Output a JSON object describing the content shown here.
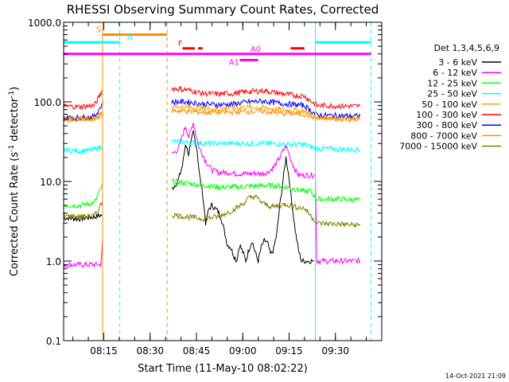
{
  "chart_data": {
    "type": "line",
    "title": "RHESSI Observing Summary Count Rates, Corrected",
    "xlabel": "Start Time (11-May-10 08:02:22)",
    "ylabel_main": "Corrected Count Rate (s",
    "ylabel_sup1": "-1",
    "ylabel_mid": " detector",
    "ylabel_sup2": "-1",
    "ylabel_end": ")",
    "x_range_min": [
      0,
      103
    ],
    "y_range": [
      0.1,
      1000
    ],
    "y_scale": "log",
    "x_ticks": [
      {
        "min": 13,
        "label": "08:15"
      },
      {
        "min": 28,
        "label": "08:30"
      },
      {
        "min": 43,
        "label": "08:45"
      },
      {
        "min": 58,
        "label": "09:00"
      },
      {
        "min": 73,
        "label": "09:15"
      },
      {
        "min": 88,
        "label": "09:30"
      }
    ],
    "y_ticks": [
      {
        "v": 1000,
        "label": "1000.0"
      },
      {
        "v": 100,
        "label": "100.0"
      },
      {
        "v": 10,
        "label": "10.0"
      },
      {
        "v": 1,
        "label": "1.0"
      },
      {
        "v": 0.1,
        "label": "0.1"
      }
    ],
    "legend_title": "Det 1,3,4,5,6,9",
    "legend_placement": "right",
    "series": [
      {
        "name": "3 - 6 keV",
        "color": "#000000",
        "segments": [
          [
            [
              0,
              3.5
            ],
            [
              5,
              3.4
            ],
            [
              10,
              3.6
            ],
            [
              12.5,
              3.8
            ]
          ],
          [
            [
              35,
              8
            ],
            [
              37,
              10
            ],
            [
              38.5,
              16
            ],
            [
              39.5,
              30
            ],
            [
              40.5,
              22
            ],
            [
              42,
              42
            ],
            [
              43.2,
              25
            ],
            [
              44,
              12
            ],
            [
              45,
              7
            ],
            [
              46,
              3
            ],
            [
              47,
              4.5
            ],
            [
              48,
              5
            ],
            [
              49,
              4.6
            ],
            [
              50,
              4.2
            ],
            [
              51,
              3.5
            ],
            [
              52,
              2.4
            ],
            [
              53,
              1.6
            ],
            [
              54,
              1.5
            ],
            [
              55,
              1.2
            ],
            [
              56,
              1.0
            ],
            [
              57,
              1.6
            ],
            [
              58,
              1.3
            ],
            [
              59,
              1.0
            ],
            [
              60,
              1.4
            ],
            [
              61,
              1.8
            ],
            [
              62,
              1.3
            ],
            [
              63,
              1.0
            ],
            [
              64,
              1.5
            ],
            [
              65,
              1.8
            ],
            [
              66,
              1.7
            ],
            [
              67,
              1.2
            ],
            [
              68,
              1.4
            ],
            [
              69,
              2.2
            ],
            [
              70,
              5
            ],
            [
              71,
              10
            ],
            [
              72,
              20
            ],
            [
              73,
              11
            ],
            [
              74,
              5
            ],
            [
              75,
              2.4
            ],
            [
              76,
              1.4
            ],
            [
              77,
              1.0
            ],
            [
              78,
              1.0
            ],
            [
              79,
              1.0
            ],
            [
              80,
              1.0
            ],
            [
              81,
              1.0
            ]
          ]
        ]
      },
      {
        "name": "6 - 12 keV",
        "color": "#ff00ff",
        "segments": [
          [
            [
              0,
              0.9
            ],
            [
              12,
              0.9
            ],
            [
              12.6,
              1.8
            ]
          ],
          [
            [
              35,
              22
            ],
            [
              37,
              25
            ],
            [
              38.5,
              38
            ],
            [
              39.5,
              50
            ],
            [
              40.5,
              36
            ],
            [
              42,
              55
            ],
            [
              43.2,
              34
            ],
            [
              44,
              26
            ],
            [
              45,
              22
            ],
            [
              46,
              18
            ],
            [
              48,
              14
            ],
            [
              50,
              13
            ],
            [
              52,
              13
            ],
            [
              54,
              13
            ],
            [
              56,
              12.5
            ],
            [
              58,
              12.5
            ],
            [
              60,
              12.5
            ],
            [
              62,
              12.7
            ],
            [
              64,
              12.5
            ],
            [
              66,
              13
            ],
            [
              68,
              15
            ],
            [
              70,
              20
            ],
            [
              71,
              24
            ],
            [
              72,
              28
            ],
            [
              73,
              22
            ],
            [
              74,
              17
            ],
            [
              75,
              14
            ],
            [
              76,
              12
            ],
            [
              78,
              12
            ],
            [
              80,
              12
            ],
            [
              81.5,
              12
            ],
            [
              82,
              1
            ],
            [
              96,
              1
            ]
          ]
        ]
      },
      {
        "name": "12 - 25 keV",
        "color": "#00ff00",
        "segments": [
          [
            [
              0,
              5
            ],
            [
              5,
              5
            ],
            [
              10,
              5.4
            ],
            [
              12.6,
              9
            ]
          ],
          [
            [
              35,
              10
            ],
            [
              40,
              9.5
            ],
            [
              45,
              9
            ],
            [
              50,
              8.5
            ],
            [
              55,
              8.5
            ],
            [
              60,
              8.7
            ],
            [
              65,
              8.9
            ],
            [
              70,
              8.8
            ],
            [
              72,
              8.5
            ],
            [
              75,
              8
            ],
            [
              78,
              7.5
            ],
            [
              80,
              7.5
            ],
            [
              82,
              6
            ],
            [
              90,
              6
            ],
            [
              96,
              5.8
            ]
          ]
        ]
      },
      {
        "name": "25 - 50 keV",
        "color": "#00ffff",
        "segments": [
          [
            [
              0,
              25
            ],
            [
              5,
              24
            ],
            [
              10,
              25
            ],
            [
              12.6,
              28
            ]
          ],
          [
            [
              35,
              32
            ],
            [
              45,
              30
            ],
            [
              55,
              30
            ],
            [
              65,
              30
            ],
            [
              72,
              29.5
            ],
            [
              78,
              29
            ],
            [
              82,
              26
            ],
            [
              96,
              25
            ]
          ]
        ]
      },
      {
        "name": "50 - 100 keV",
        "color": "#ffa500",
        "segments": [
          [
            [
              0,
              62
            ],
            [
              5,
              61
            ],
            [
              10,
              62
            ],
            [
              12.6,
              75
            ]
          ],
          [
            [
              35,
              88
            ],
            [
              40,
              86
            ],
            [
              45,
              82
            ],
            [
              50,
              82
            ],
            [
              55,
              84
            ],
            [
              60,
              86
            ],
            [
              65,
              84
            ],
            [
              70,
              80
            ],
            [
              75,
              78
            ],
            [
              78,
              77
            ],
            [
              82,
              64
            ],
            [
              96,
              62
            ]
          ]
        ]
      },
      {
        "name": "100 - 300 keV",
        "color": "#ff0000",
        "segments": [
          [
            [
              0,
              88
            ],
            [
              5,
              87
            ],
            [
              10,
              90
            ],
            [
              12.6,
              140
            ]
          ],
          [
            [
              35,
              148
            ],
            [
              40,
              142
            ],
            [
              45,
              128
            ],
            [
              50,
              125
            ],
            [
              55,
              128
            ],
            [
              60,
              135
            ],
            [
              65,
              138
            ],
            [
              70,
              128
            ],
            [
              75,
              120
            ],
            [
              78,
              118
            ],
            [
              82,
              90
            ],
            [
              96,
              88
            ]
          ]
        ]
      },
      {
        "name": "300 - 800 keV",
        "color": "#0000ff",
        "segments": [
          [
            [
              0,
              64
            ],
            [
              5,
              63
            ],
            [
              10,
              65
            ],
            [
              12.6,
              95
            ]
          ],
          [
            [
              35,
              100
            ],
            [
              40,
              100
            ],
            [
              45,
              94
            ],
            [
              50,
              92
            ],
            [
              55,
              94
            ],
            [
              60,
              100
            ],
            [
              65,
              102
            ],
            [
              70,
              96
            ],
            [
              75,
              92
            ],
            [
              78,
              90
            ],
            [
              82,
              68
            ],
            [
              96,
              66
            ]
          ]
        ]
      },
      {
        "name": "800 - 7000 keV",
        "color": "#ff8c00",
        "segments": [
          [
            [
              0,
              60
            ],
            [
              5,
              60
            ],
            [
              10,
              61
            ],
            [
              12.6,
              70
            ]
          ],
          [
            [
              35,
              78
            ],
            [
              40,
              76
            ],
            [
              45,
              74
            ],
            [
              50,
              74
            ],
            [
              55,
              74
            ],
            [
              60,
              76
            ],
            [
              65,
              76
            ],
            [
              70,
              72
            ],
            [
              75,
              71
            ],
            [
              78,
              70
            ],
            [
              82,
              62
            ],
            [
              96,
              60
            ]
          ]
        ]
      },
      {
        "name": "7000 - 15000 keV",
        "color": "#808000",
        "segments": [
          [
            [
              0,
              3.7
            ],
            [
              5,
              3.6
            ],
            [
              10,
              3.7
            ],
            [
              12.6,
              5.5
            ]
          ],
          [
            [
              35,
              3.8
            ],
            [
              40,
              3.6
            ],
            [
              45,
              3.4
            ],
            [
              50,
              3.6
            ],
            [
              55,
              4.4
            ],
            [
              58,
              5.2
            ],
            [
              60,
              6.2
            ],
            [
              62,
              6.5
            ],
            [
              64,
              5.5
            ],
            [
              66,
              5
            ],
            [
              68,
              4.8
            ],
            [
              70,
              5
            ],
            [
              72,
              5.2
            ],
            [
              75,
              4.8
            ],
            [
              78,
              4.6
            ],
            [
              82,
              3
            ],
            [
              90,
              2.9
            ],
            [
              96,
              2.8
            ]
          ]
        ]
      }
    ],
    "vertical_lines": [
      {
        "min": 12.6,
        "color": "#ff8c00",
        "dash": false
      },
      {
        "min": 18.2,
        "color": "#00ffff",
        "dash": true
      },
      {
        "min": 33.5,
        "color": "#ff8c00",
        "dash": true
      },
      {
        "min": 81.5,
        "color": "#00ffff",
        "dash": false
      },
      {
        "min": 99.5,
        "color": "#00ffff",
        "dash": true
      }
    ],
    "state_bars": [
      {
        "label": "S",
        "color": "#ff8c00",
        "y": 700,
        "x0": 12.6,
        "x1": 33.5,
        "label_at": 10.5
      },
      {
        "label": "N",
        "color": "#00ffff",
        "y": 560,
        "x0": 0,
        "x1": 18.2,
        "label_at": 20.5
      },
      {
        "label": "N",
        "color": "#00ffff",
        "y": 560,
        "x0": 81.5,
        "x1": 99.5,
        "label_at": null
      },
      {
        "label": "F",
        "color": "#ff0000",
        "y": 470,
        "x0": 38.5,
        "x1": 42.5,
        "label_at": 37
      },
      {
        "label": "",
        "color": "#ff0000",
        "y": 470,
        "x0": 43.5,
        "x1": 45,
        "label_at": null
      },
      {
        "label": "",
        "color": "#ff0000",
        "y": 470,
        "x0": 73.5,
        "x1": 78,
        "label_at": null
      },
      {
        "label": "A0",
        "color": "#ff00ff",
        "y": 400,
        "x0": 0,
        "x1": 99.5,
        "label_at": 60.5
      },
      {
        "label": "A1",
        "color": "#ff00ff",
        "y": 335,
        "x0": 57,
        "x1": 63,
        "label_at": 53.5
      }
    ],
    "timestamp": "14-Oct-2021 21:09"
  }
}
